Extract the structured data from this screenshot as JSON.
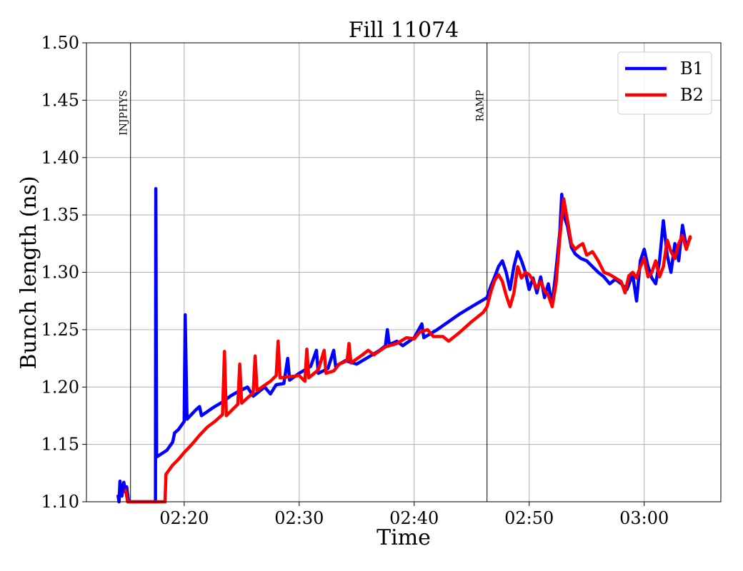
{
  "chart_data": {
    "type": "line",
    "title": "Fill 11074",
    "xlabel": "Time",
    "ylabel": "Bunch length (ns)",
    "xlim": [
      "02:11:30",
      "03:06:40"
    ],
    "ylim": [
      1.1,
      1.5
    ],
    "xticks": [
      "02:20",
      "02:30",
      "02:40",
      "02:50",
      "03:00"
    ],
    "yticks": [
      "1.10",
      "1.15",
      "1.20",
      "1.25",
      "1.30",
      "1.35",
      "1.40",
      "1.45",
      "1.50"
    ],
    "grid": true,
    "legend_position": "top-right",
    "markers": [
      {
        "label": "INJPHYS",
        "time": "02:15:20"
      },
      {
        "label": "RAMP",
        "time": "02:46:20"
      }
    ],
    "series": [
      {
        "name": "B1",
        "color": "#0000ff",
        "points": [
          [
            "02:14:15",
            1.105
          ],
          [
            "02:14:20",
            1.1
          ],
          [
            "02:14:25",
            1.118
          ],
          [
            "02:14:35",
            1.105
          ],
          [
            "02:14:45",
            1.117
          ],
          [
            "02:14:55",
            1.108
          ],
          [
            "02:15:00",
            1.113
          ],
          [
            "02:15:10",
            1.1
          ],
          [
            "02:17:30",
            1.1
          ],
          [
            "02:17:32",
            1.373
          ],
          [
            "02:17:36",
            1.139
          ],
          [
            "02:18:30",
            1.145
          ],
          [
            "02:19:00",
            1.152
          ],
          [
            "02:19:10",
            1.16
          ],
          [
            "02:19:30",
            1.163
          ],
          [
            "02:20:00",
            1.17
          ],
          [
            "02:20:05",
            1.263
          ],
          [
            "02:20:15",
            1.172
          ],
          [
            "02:21:00",
            1.18
          ],
          [
            "02:21:20",
            1.183
          ],
          [
            "02:21:30",
            1.175
          ],
          [
            "02:22:30",
            1.182
          ],
          [
            "02:23:30",
            1.188
          ],
          [
            "02:24:00",
            1.192
          ],
          [
            "02:24:30",
            1.195
          ],
          [
            "02:25:30",
            1.2
          ],
          [
            "02:26:00",
            1.192
          ],
          [
            "02:27:00",
            1.2
          ],
          [
            "02:27:30",
            1.194
          ],
          [
            "02:28:00",
            1.202
          ],
          [
            "02:28:40",
            1.203
          ],
          [
            "02:29:00",
            1.225
          ],
          [
            "02:29:10",
            1.206
          ],
          [
            "02:30:00",
            1.212
          ],
          [
            "02:31:00",
            1.218
          ],
          [
            "02:31:30",
            1.232
          ],
          [
            "02:31:40",
            1.212
          ],
          [
            "02:32:30",
            1.216
          ],
          [
            "02:33:00",
            1.232
          ],
          [
            "02:33:10",
            1.218
          ],
          [
            "02:34:00",
            1.223
          ],
          [
            "02:35:00",
            1.22
          ],
          [
            "02:36:00",
            1.226
          ],
          [
            "02:37:00",
            1.232
          ],
          [
            "02:37:30",
            1.236
          ],
          [
            "02:37:40",
            1.25
          ],
          [
            "02:37:50",
            1.237
          ],
          [
            "02:38:30",
            1.24
          ],
          [
            "02:39:00",
            1.236
          ],
          [
            "02:40:00",
            1.243
          ],
          [
            "02:40:40",
            1.255
          ],
          [
            "02:40:50",
            1.243
          ],
          [
            "02:42:00",
            1.25
          ],
          [
            "02:43:00",
            1.257
          ],
          [
            "02:44:00",
            1.264
          ],
          [
            "02:45:00",
            1.27
          ],
          [
            "02:46:20",
            1.278
          ],
          [
            "02:46:40",
            1.288
          ],
          [
            "02:47:00",
            1.296
          ],
          [
            "02:47:20",
            1.305
          ],
          [
            "02:47:40",
            1.31
          ],
          [
            "02:48:00",
            1.3
          ],
          [
            "02:48:20",
            1.285
          ],
          [
            "02:48:40",
            1.305
          ],
          [
            "02:49:00",
            1.318
          ],
          [
            "02:49:20",
            1.31
          ],
          [
            "02:49:40",
            1.3
          ],
          [
            "02:50:00",
            1.285
          ],
          [
            "02:50:20",
            1.295
          ],
          [
            "02:50:40",
            1.282
          ],
          [
            "02:51:00",
            1.296
          ],
          [
            "02:51:20",
            1.278
          ],
          [
            "02:51:40",
            1.29
          ],
          [
            "02:52:00",
            1.272
          ],
          [
            "02:52:20",
            1.302
          ],
          [
            "02:52:40",
            1.335
          ],
          [
            "02:52:50",
            1.368
          ],
          [
            "02:53:00",
            1.35
          ],
          [
            "02:53:20",
            1.34
          ],
          [
            "02:53:40",
            1.322
          ],
          [
            "02:54:00",
            1.316
          ],
          [
            "02:54:30",
            1.312
          ],
          [
            "02:55:00",
            1.31
          ],
          [
            "02:55:30",
            1.305
          ],
          [
            "02:56:00",
            1.3
          ],
          [
            "02:56:30",
            1.296
          ],
          [
            "02:57:00",
            1.29
          ],
          [
            "02:57:30",
            1.294
          ],
          [
            "02:58:00",
            1.29
          ],
          [
            "02:58:30",
            1.285
          ],
          [
            "02:59:00",
            1.298
          ],
          [
            "02:59:20",
            1.275
          ],
          [
            "02:59:40",
            1.31
          ],
          [
            "03:00:00",
            1.32
          ],
          [
            "03:00:20",
            1.305
          ],
          [
            "03:00:40",
            1.295
          ],
          [
            "03:01:00",
            1.29
          ],
          [
            "03:01:20",
            1.31
          ],
          [
            "03:01:40",
            1.345
          ],
          [
            "03:02:00",
            1.315
          ],
          [
            "03:02:20",
            1.3
          ],
          [
            "03:02:40",
            1.325
          ],
          [
            "03:03:00",
            1.31
          ],
          [
            "03:03:20",
            1.341
          ],
          [
            "03:03:40",
            1.322
          ],
          [
            "03:04:00",
            1.33
          ]
        ]
      },
      {
        "name": "B2",
        "color": "#ff0000",
        "points": [
          [
            "02:14:55",
            1.11
          ],
          [
            "02:15:05",
            1.1
          ],
          [
            "02:18:20",
            1.1
          ],
          [
            "02:18:25",
            1.124
          ],
          [
            "02:19:00",
            1.132
          ],
          [
            "02:19:30",
            1.137
          ],
          [
            "02:20:00",
            1.143
          ],
          [
            "02:20:40",
            1.15
          ],
          [
            "02:21:20",
            1.158
          ],
          [
            "02:22:00",
            1.165
          ],
          [
            "02:22:40",
            1.17
          ],
          [
            "02:23:20",
            1.176
          ],
          [
            "02:23:30",
            1.231
          ],
          [
            "02:23:40",
            1.175
          ],
          [
            "02:24:40",
            1.185
          ],
          [
            "02:24:50",
            1.22
          ],
          [
            "02:25:00",
            1.186
          ],
          [
            "02:26:00",
            1.195
          ],
          [
            "02:26:10",
            1.227
          ],
          [
            "02:26:20",
            1.197
          ],
          [
            "02:27:30",
            1.205
          ],
          [
            "02:28:00",
            1.21
          ],
          [
            "02:28:10",
            1.24
          ],
          [
            "02:28:20",
            1.208
          ],
          [
            "02:30:00",
            1.21
          ],
          [
            "02:30:30",
            1.205
          ],
          [
            "02:30:40",
            1.233
          ],
          [
            "02:30:50",
            1.208
          ],
          [
            "02:31:40",
            1.215
          ],
          [
            "02:32:10",
            1.232
          ],
          [
            "02:32:20",
            1.212
          ],
          [
            "02:33:00",
            1.214
          ],
          [
            "02:33:30",
            1.22
          ],
          [
            "02:34:10",
            1.223
          ],
          [
            "02:34:20",
            1.238
          ],
          [
            "02:34:30",
            1.221
          ],
          [
            "02:35:30",
            1.228
          ],
          [
            "02:36:00",
            1.232
          ],
          [
            "02:36:30",
            1.228
          ],
          [
            "02:37:30",
            1.235
          ],
          [
            "02:38:30",
            1.238
          ],
          [
            "02:39:20",
            1.243
          ],
          [
            "02:40:00",
            1.242
          ],
          [
            "02:40:30",
            1.248
          ],
          [
            "02:41:10",
            1.25
          ],
          [
            "02:41:40",
            1.244
          ],
          [
            "02:42:30",
            1.244
          ],
          [
            "02:43:00",
            1.24
          ],
          [
            "02:44:00",
            1.248
          ],
          [
            "02:45:00",
            1.257
          ],
          [
            "02:46:00",
            1.265
          ],
          [
            "02:46:20",
            1.27
          ],
          [
            "02:46:40",
            1.283
          ],
          [
            "02:47:00",
            1.293
          ],
          [
            "02:47:20",
            1.298
          ],
          [
            "02:47:40",
            1.292
          ],
          [
            "02:48:00",
            1.28
          ],
          [
            "02:48:20",
            1.27
          ],
          [
            "02:48:40",
            1.282
          ],
          [
            "02:49:00",
            1.305
          ],
          [
            "02:49:20",
            1.295
          ],
          [
            "02:49:40",
            1.3
          ],
          [
            "02:50:00",
            1.298
          ],
          [
            "02:50:20",
            1.293
          ],
          [
            "02:50:40",
            1.286
          ],
          [
            "02:51:00",
            1.292
          ],
          [
            "02:51:20",
            1.284
          ],
          [
            "02:51:40",
            1.28
          ],
          [
            "02:52:00",
            1.27
          ],
          [
            "02:52:20",
            1.29
          ],
          [
            "02:52:40",
            1.33
          ],
          [
            "02:53:00",
            1.364
          ],
          [
            "02:53:20",
            1.345
          ],
          [
            "02:53:40",
            1.325
          ],
          [
            "02:54:00",
            1.32
          ],
          [
            "02:54:20",
            1.323
          ],
          [
            "02:54:40",
            1.325
          ],
          [
            "02:55:00",
            1.315
          ],
          [
            "02:55:30",
            1.318
          ],
          [
            "02:56:00",
            1.31
          ],
          [
            "02:56:30",
            1.3
          ],
          [
            "02:57:00",
            1.298
          ],
          [
            "02:57:30",
            1.295
          ],
          [
            "02:58:00",
            1.292
          ],
          [
            "02:58:20",
            1.282
          ],
          [
            "02:58:40",
            1.297
          ],
          [
            "02:59:00",
            1.3
          ],
          [
            "02:59:20",
            1.295
          ],
          [
            "02:59:40",
            1.305
          ],
          [
            "03:00:00",
            1.312
          ],
          [
            "03:00:20",
            1.296
          ],
          [
            "03:00:40",
            1.3
          ],
          [
            "03:01:00",
            1.31
          ],
          [
            "03:01:20",
            1.296
          ],
          [
            "03:01:40",
            1.305
          ],
          [
            "03:02:00",
            1.328
          ],
          [
            "03:02:20",
            1.318
          ],
          [
            "03:02:40",
            1.312
          ],
          [
            "03:03:00",
            1.325
          ],
          [
            "03:03:20",
            1.332
          ],
          [
            "03:03:40",
            1.32
          ],
          [
            "03:04:00",
            1.331
          ]
        ]
      }
    ]
  }
}
